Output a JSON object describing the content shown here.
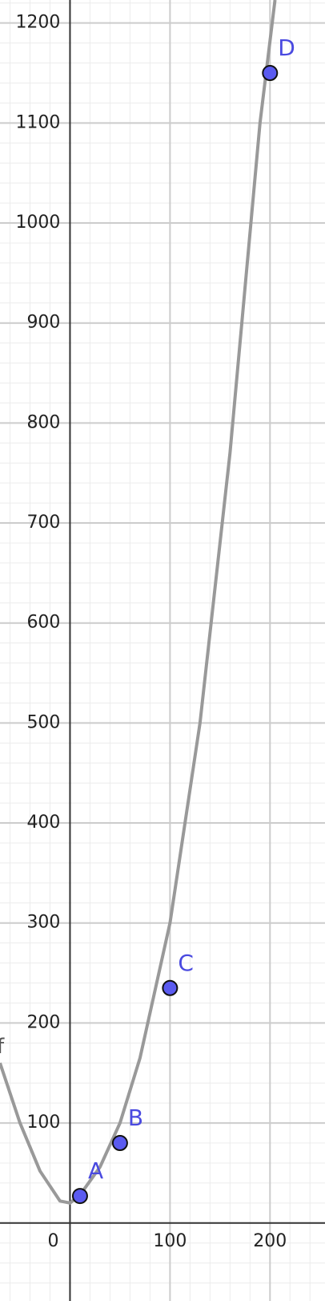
{
  "chart_data": {
    "type": "line",
    "series": [
      {
        "name": "f",
        "color": "#999999",
        "x": [
          -70,
          -50,
          -30,
          -10,
          0,
          10,
          30,
          50,
          70,
          100,
          130,
          160,
          190,
          205
        ],
        "values": [
          160,
          100,
          52,
          22,
          20,
          28,
          56,
          100,
          165,
          300,
          500,
          770,
          1100,
          1223
        ]
      }
    ],
    "points": {
      "labels": [
        "A",
        "B",
        "C",
        "D"
      ],
      "x": [
        10,
        50,
        100,
        200
      ],
      "y": [
        27,
        80,
        235,
        1150
      ],
      "color": "#5b5bf0"
    },
    "xlim": [
      -70,
      255
    ],
    "ylim": [
      -78,
      1223
    ],
    "xticks": [
      0,
      100,
      200
    ],
    "yticks": [
      100,
      200,
      300,
      400,
      500,
      600,
      700,
      800,
      900,
      1000,
      1100,
      1200
    ],
    "grid": true,
    "minor_grid": 20
  }
}
